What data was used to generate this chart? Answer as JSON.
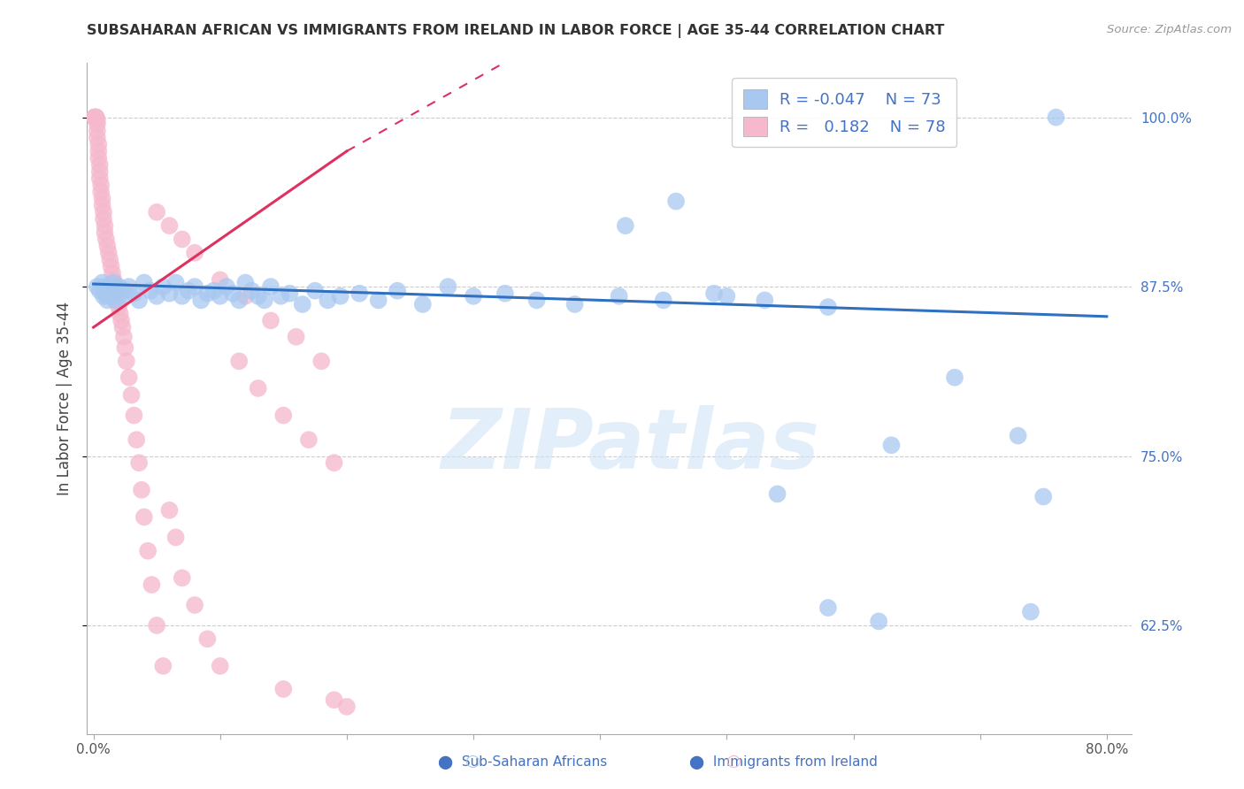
{
  "title": "SUBSAHARAN AFRICAN VS IMMIGRANTS FROM IRELAND IN LABOR FORCE | AGE 35-44 CORRELATION CHART",
  "source": "Source: ZipAtlas.com",
  "ylabel": "In Labor Force | Age 35-44",
  "xlim": [
    -0.005,
    0.82
  ],
  "ylim": [
    0.545,
    1.04
  ],
  "yticks": [
    0.625,
    0.75,
    0.875,
    1.0
  ],
  "yticklabels": [
    "62.5%",
    "75.0%",
    "87.5%",
    "100.0%"
  ],
  "blue_R": -0.047,
  "blue_N": 73,
  "pink_R": 0.182,
  "pink_N": 78,
  "blue_color": "#a8c8f0",
  "pink_color": "#f5b8cc",
  "blue_line_color": "#3070c0",
  "pink_line_color": "#e03060",
  "legend_blue_label": "Sub-Saharan Africans",
  "legend_pink_label": "Immigrants from Ireland",
  "watermark": "ZIPatlas",
  "blue_x": [
    0.003,
    0.005,
    0.007,
    0.008,
    0.009,
    0.01,
    0.011,
    0.012,
    0.013,
    0.014,
    0.015,
    0.016,
    0.017,
    0.018,
    0.02,
    0.022,
    0.025,
    0.028,
    0.032,
    0.036,
    0.04,
    0.045,
    0.05,
    0.055,
    0.06,
    0.065,
    0.07,
    0.075,
    0.08,
    0.085,
    0.09,
    0.095,
    0.1,
    0.105,
    0.11,
    0.115,
    0.12,
    0.125,
    0.13,
    0.135,
    0.14,
    0.148,
    0.155,
    0.165,
    0.175,
    0.185,
    0.195,
    0.21,
    0.225,
    0.24,
    0.26,
    0.28,
    0.3,
    0.325,
    0.35,
    0.38,
    0.415,
    0.45,
    0.49,
    0.53,
    0.58,
    0.63,
    0.68,
    0.73,
    0.75,
    0.42,
    0.46,
    0.5,
    0.54,
    0.58,
    0.62,
    0.74,
    0.76
  ],
  "blue_y": [
    0.875,
    0.872,
    0.878,
    0.868,
    0.875,
    0.87,
    0.865,
    0.87,
    0.875,
    0.868,
    0.872,
    0.878,
    0.865,
    0.87,
    0.875,
    0.868,
    0.872,
    0.875,
    0.87,
    0.865,
    0.878,
    0.872,
    0.868,
    0.875,
    0.87,
    0.878,
    0.868,
    0.872,
    0.875,
    0.865,
    0.87,
    0.872,
    0.868,
    0.875,
    0.87,
    0.865,
    0.878,
    0.872,
    0.868,
    0.865,
    0.875,
    0.868,
    0.87,
    0.862,
    0.872,
    0.865,
    0.868,
    0.87,
    0.865,
    0.872,
    0.862,
    0.875,
    0.868,
    0.87,
    0.865,
    0.862,
    0.868,
    0.865,
    0.87,
    0.865,
    0.86,
    0.758,
    0.808,
    0.765,
    0.72,
    0.92,
    0.938,
    0.868,
    0.722,
    0.638,
    0.628,
    0.635,
    1.0
  ],
  "pink_x": [
    0.001,
    0.001,
    0.001,
    0.001,
    0.001,
    0.002,
    0.002,
    0.002,
    0.002,
    0.003,
    0.003,
    0.003,
    0.003,
    0.004,
    0.004,
    0.004,
    0.005,
    0.005,
    0.005,
    0.006,
    0.006,
    0.007,
    0.007,
    0.008,
    0.008,
    0.009,
    0.009,
    0.01,
    0.011,
    0.012,
    0.013,
    0.014,
    0.015,
    0.016,
    0.017,
    0.018,
    0.019,
    0.02,
    0.021,
    0.022,
    0.023,
    0.024,
    0.025,
    0.026,
    0.028,
    0.03,
    0.032,
    0.034,
    0.036,
    0.038,
    0.04,
    0.043,
    0.046,
    0.05,
    0.055,
    0.06,
    0.065,
    0.07,
    0.08,
    0.09,
    0.1,
    0.115,
    0.13,
    0.15,
    0.17,
    0.19,
    0.15,
    0.05,
    0.06,
    0.07,
    0.08,
    0.1,
    0.12,
    0.14,
    0.16,
    0.18,
    0.19,
    0.2
  ],
  "pink_y": [
    1.0,
    1.0,
    1.0,
    1.0,
    1.0,
    1.0,
    1.0,
    1.0,
    1.0,
    0.998,
    0.995,
    0.99,
    0.985,
    0.98,
    0.975,
    0.97,
    0.965,
    0.96,
    0.955,
    0.95,
    0.945,
    0.94,
    0.935,
    0.93,
    0.925,
    0.92,
    0.915,
    0.91,
    0.905,
    0.9,
    0.895,
    0.89,
    0.885,
    0.88,
    0.875,
    0.87,
    0.865,
    0.86,
    0.855,
    0.85,
    0.845,
    0.838,
    0.83,
    0.82,
    0.808,
    0.795,
    0.78,
    0.762,
    0.745,
    0.725,
    0.705,
    0.68,
    0.655,
    0.625,
    0.595,
    0.71,
    0.69,
    0.66,
    0.64,
    0.615,
    0.595,
    0.82,
    0.8,
    0.78,
    0.762,
    0.745,
    0.578,
    0.93,
    0.92,
    0.91,
    0.9,
    0.88,
    0.868,
    0.85,
    0.838,
    0.82,
    0.57,
    0.565
  ]
}
